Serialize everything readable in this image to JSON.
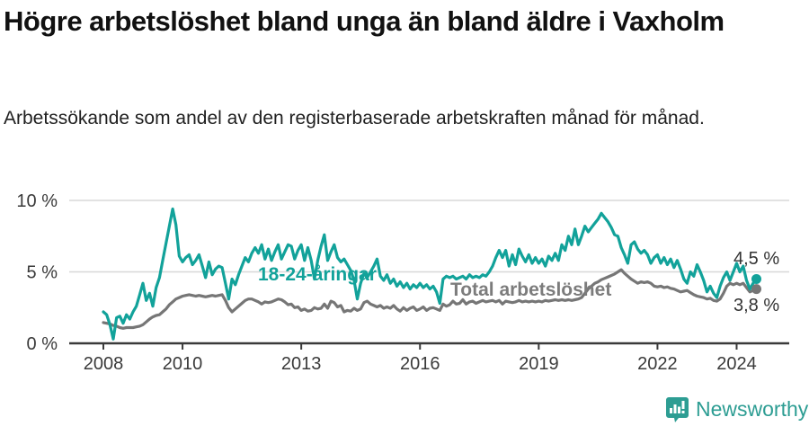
{
  "header": {
    "title": "Högre arbetslöshet bland unga än bland äldre i Vaxholm",
    "subtitle": "Arbetssökande som andel av den registerbaserade arbetskraften månad för månad."
  },
  "chart_data": {
    "type": "line",
    "title": "Högre arbetslöshet bland unga än bland äldre i Vaxholm",
    "subtitle": "Arbetssökande som andel av den registerbaserade arbetskraften månad för månad.",
    "xlabel": "",
    "ylabel": "",
    "frequency": "monthly",
    "x_start": "2008-01",
    "x_end": "2024-07",
    "ylim": [
      0,
      10.7
    ],
    "grid": "horizontal",
    "legend_position": "inline-labels",
    "y_ticks": [
      {
        "value": 0,
        "label": "0 %"
      },
      {
        "value": 5,
        "label": "5 %"
      },
      {
        "value": 10,
        "label": "10 %"
      }
    ],
    "x_ticks": [
      {
        "year": 2008,
        "label": "2008"
      },
      {
        "year": 2010,
        "label": "2010"
      },
      {
        "year": 2013,
        "label": "2013"
      },
      {
        "year": 2016,
        "label": "2016"
      },
      {
        "year": 2019,
        "label": "2019"
      },
      {
        "year": 2022,
        "label": "2022"
      },
      {
        "year": 2024,
        "label": "2024"
      }
    ],
    "series": [
      {
        "name": "18-24-åringar",
        "color": "#12a29a",
        "end_value": 4.5,
        "end_label": "4,5 %",
        "values": [
          2.2,
          2.0,
          1.3,
          0.3,
          1.8,
          1.9,
          1.4,
          2.0,
          1.7,
          2.2,
          2.6,
          3.4,
          4.2,
          3.0,
          3.5,
          2.6,
          3.9,
          4.6,
          5.8,
          7.0,
          8.2,
          9.4,
          8.3,
          6.1,
          5.7,
          6.0,
          6.2,
          5.5,
          5.8,
          6.2,
          5.4,
          4.6,
          5.7,
          4.8,
          5.2,
          5.4,
          5.3,
          4.2,
          3.1,
          4.5,
          4.1,
          4.8,
          5.4,
          6.0,
          5.7,
          6.3,
          6.7,
          6.3,
          6.9,
          5.9,
          6.6,
          5.8,
          6.4,
          6.9,
          5.9,
          6.4,
          6.9,
          6.8,
          5.9,
          6.5,
          6.9,
          5.8,
          6.7,
          5.8,
          4.5,
          5.8,
          6.8,
          7.6,
          5.8,
          6.4,
          6.9,
          6.0,
          5.7,
          5.9,
          5.5,
          5.1,
          4.4,
          3.1,
          4.2,
          4.9,
          4.6,
          5.0,
          5.4,
          5.9,
          4.7,
          4.4,
          4.8,
          4.2,
          4.5,
          4.0,
          4.3,
          3.9,
          4.2,
          3.8,
          4.1,
          3.9,
          4.2,
          3.9,
          4.1,
          3.8,
          4.0,
          3.6,
          2.8,
          4.5,
          4.7,
          4.6,
          4.7,
          4.5,
          4.6,
          4.7,
          4.5,
          4.8,
          4.6,
          4.7,
          4.6,
          4.8,
          4.7,
          5.0,
          5.4,
          6.0,
          6.5,
          6.0,
          6.5,
          5.4,
          6.2,
          5.5,
          6.6,
          6.1,
          5.7,
          6.2,
          5.6,
          6.0,
          5.6,
          5.9,
          5.4,
          6.1,
          5.8,
          6.3,
          5.8,
          6.9,
          6.5,
          7.5,
          6.9,
          8.0,
          6.9,
          7.5,
          8.2,
          7.8,
          8.1,
          8.4,
          8.7,
          9.1,
          8.8,
          8.5,
          8.1,
          7.6,
          7.5,
          6.7,
          6.2,
          5.6,
          6.9,
          7.1,
          6.6,
          6.3,
          6.5,
          6.2,
          5.6,
          6.0,
          6.2,
          5.6,
          6.0,
          5.5,
          5.9,
          5.3,
          5.8,
          5.2,
          4.5,
          4.2,
          5.0,
          4.7,
          5.5,
          5.0,
          4.4,
          3.6,
          4.0,
          3.5,
          3.2,
          4.0,
          4.6,
          5.0,
          4.4,
          5.0,
          5.6,
          5.0,
          5.4,
          4.4,
          3.8,
          4.2,
          4.5
        ]
      },
      {
        "name": "Total arbetslöshet",
        "color": "#767676",
        "end_value": 3.8,
        "end_label": "3,8 %",
        "values": [
          1.45,
          1.4,
          1.35,
          1.25,
          1.2,
          1.1,
          1.05,
          1.1,
          1.1,
          1.1,
          1.15,
          1.2,
          1.3,
          1.5,
          1.7,
          1.85,
          1.95,
          2.0,
          2.2,
          2.4,
          2.7,
          2.9,
          3.1,
          3.2,
          3.3,
          3.35,
          3.4,
          3.35,
          3.3,
          3.35,
          3.3,
          3.25,
          3.3,
          3.35,
          3.3,
          3.35,
          3.4,
          3.0,
          2.5,
          2.2,
          2.4,
          2.6,
          2.8,
          3.0,
          3.1,
          3.1,
          3.0,
          2.9,
          2.75,
          2.9,
          2.85,
          2.9,
          3.0,
          3.1,
          3.05,
          2.9,
          2.7,
          2.75,
          2.5,
          2.55,
          2.3,
          2.4,
          2.25,
          2.3,
          2.5,
          2.4,
          2.45,
          2.75,
          2.45,
          2.95,
          2.85,
          2.55,
          2.65,
          2.2,
          2.3,
          2.25,
          2.45,
          2.3,
          2.4,
          2.85,
          2.95,
          2.75,
          2.65,
          2.55,
          2.65,
          2.45,
          2.55,
          2.45,
          2.65,
          2.4,
          2.25,
          2.5,
          2.3,
          2.45,
          2.55,
          2.3,
          2.4,
          2.55,
          2.3,
          2.45,
          2.5,
          2.4,
          2.3,
          2.75,
          2.6,
          2.7,
          2.95,
          2.75,
          2.8,
          3.05,
          2.75,
          2.9,
          2.95,
          2.8,
          2.9,
          3.0,
          2.9,
          2.95,
          3.0,
          2.9,
          3.0,
          2.75,
          2.95,
          2.9,
          2.85,
          2.9,
          3.0,
          2.9,
          2.95,
          2.9,
          2.95,
          2.9,
          2.95,
          2.9,
          3.0,
          2.95,
          3.0,
          3.05,
          3.0,
          3.05,
          3.0,
          3.05,
          3.0,
          3.05,
          3.1,
          3.2,
          3.5,
          3.8,
          4.0,
          4.2,
          4.3,
          4.45,
          4.55,
          4.65,
          4.75,
          4.85,
          5.0,
          5.15,
          4.9,
          4.7,
          4.5,
          4.35,
          4.2,
          4.3,
          4.25,
          4.3,
          4.2,
          4.0,
          3.95,
          4.0,
          3.9,
          3.95,
          3.85,
          3.8,
          3.7,
          3.6,
          3.65,
          3.7,
          3.55,
          3.4,
          3.3,
          3.25,
          3.2,
          3.1,
          3.15,
          3.0,
          2.95,
          3.1,
          3.5,
          4.0,
          4.2,
          4.1,
          4.2,
          4.1,
          4.2,
          3.9,
          3.6,
          3.7,
          3.8
        ]
      }
    ],
    "colors": {
      "axis": "#3a3a3a",
      "gridline": "#d8d8d8",
      "tick_label": "#3a3a3a",
      "end_label_text": "#333333"
    }
  },
  "footer": {
    "brand": "Newsworthy",
    "brand_color": "#2d9d93",
    "icon": "newsworthy-logo-icon"
  }
}
